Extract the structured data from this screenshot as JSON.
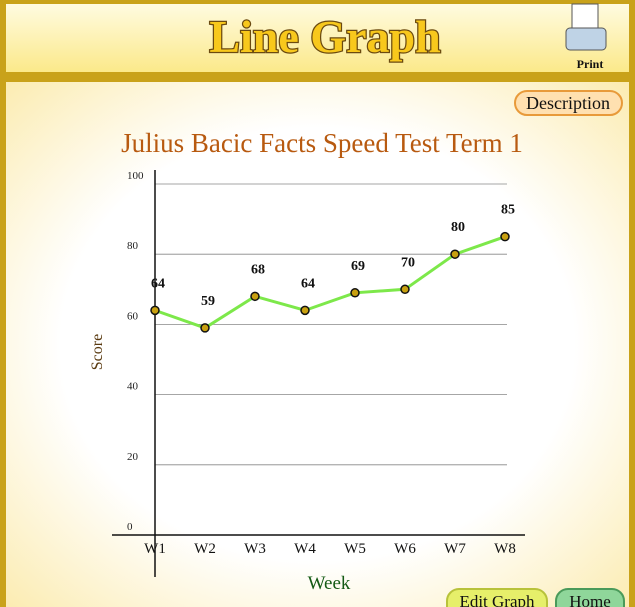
{
  "header": {
    "title": "Line Graph",
    "print": "Print"
  },
  "buttons": {
    "description": "Description",
    "edit": "Edit Graph",
    "home": "Home"
  },
  "chart_data": {
    "type": "line",
    "title": "Julius Bacic Facts Speed Test Term 1",
    "x_label": "Week",
    "y_label": "Score",
    "categories": [
      "W1",
      "W2",
      "W3",
      "W4",
      "W5",
      "W6",
      "W7",
      "W8"
    ],
    "values": [
      64,
      59,
      68,
      64,
      69,
      70,
      80,
      85
    ],
    "color": "#7de84a",
    "ylim": [
      0,
      100
    ],
    "yticks": [
      0,
      20,
      40,
      60,
      80,
      100
    ],
    "grid": true
  }
}
